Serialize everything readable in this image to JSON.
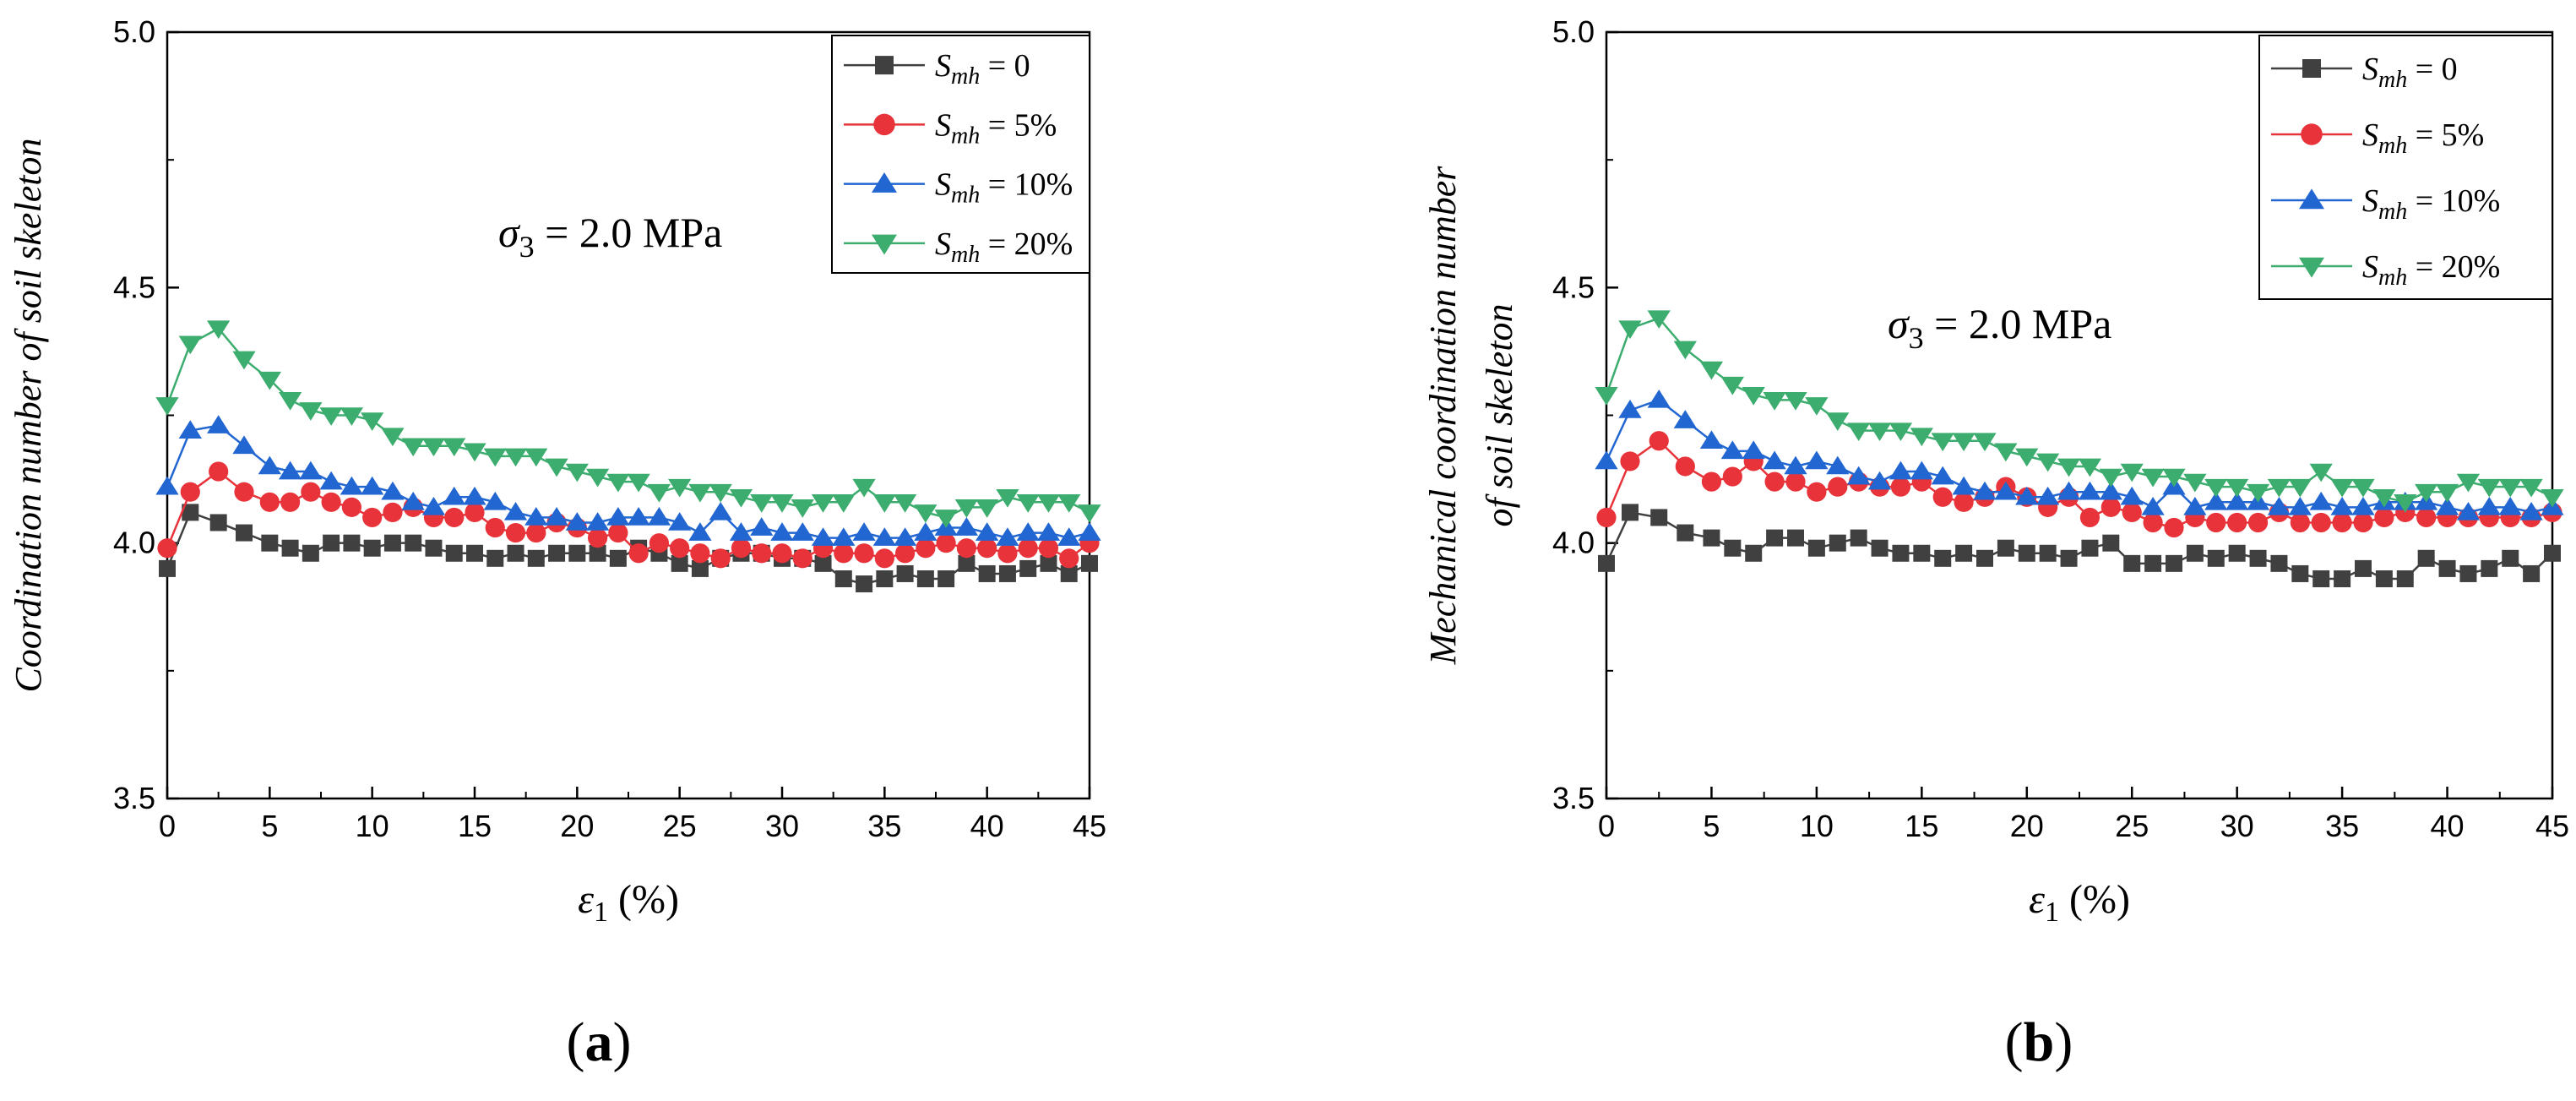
{
  "figure": {
    "panels": [
      {
        "label_open": "(",
        "label_letter": "a",
        "label_close": ")"
      },
      {
        "label_open": "(",
        "label_letter": "b",
        "label_close": ")"
      }
    ]
  },
  "chart_data": [
    {
      "type": "line",
      "panel": "a",
      "xlabel": "ε1 (%)",
      "ylabel": "Coordination number of soil skeleton",
      "xlim": [
        0,
        45
      ],
      "ylim": [
        3.5,
        5.0
      ],
      "xticks": [
        0,
        5,
        10,
        15,
        20,
        25,
        30,
        35,
        40,
        45
      ],
      "yticks": [
        3.5,
        4.0,
        4.5,
        5.0
      ],
      "grid": false,
      "legend_position": "top-right",
      "annotation": "σ3 = 2.0 MPa",
      "x": [
        0,
        1.125,
        2.5,
        3.75,
        5.0,
        6.0,
        7.0,
        8.0,
        9.0,
        10.0,
        11.0,
        12.0,
        13.0,
        14.0,
        15.0,
        16.0,
        17.0,
        18.0,
        19.0,
        20.0,
        21.0,
        22.0,
        23.0,
        24.0,
        25.0,
        26.0,
        27.0,
        28.0,
        29.0,
        30.0,
        31.0,
        32.0,
        33.0,
        34.0,
        35.0,
        36.0,
        37.0,
        38.0,
        39.0,
        40.0,
        41.0,
        42.0,
        43.0,
        44.0,
        45.0
      ],
      "series": [
        {
          "name": "Smh = 0",
          "color": "#404040",
          "marker": "square",
          "values": [
            3.95,
            4.06,
            4.04,
            4.02,
            4.0,
            3.99,
            3.98,
            4.0,
            4.0,
            3.99,
            4.0,
            4.0,
            3.99,
            3.98,
            3.98,
            3.97,
            3.98,
            3.97,
            3.98,
            3.98,
            3.98,
            3.97,
            3.99,
            3.98,
            3.96,
            3.95,
            3.97,
            3.98,
            3.98,
            3.97,
            3.97,
            3.96,
            3.93,
            3.92,
            3.93,
            3.94,
            3.93,
            3.93,
            3.96,
            3.94,
            3.94,
            3.95,
            3.96,
            3.94,
            3.96
          ]
        },
        {
          "name": "Smh = 5%",
          "color": "#e8333a",
          "marker": "circle",
          "values": [
            3.99,
            4.1,
            4.14,
            4.1,
            4.08,
            4.08,
            4.1,
            4.08,
            4.07,
            4.05,
            4.06,
            4.07,
            4.05,
            4.05,
            4.06,
            4.03,
            4.02,
            4.02,
            4.04,
            4.03,
            4.01,
            4.02,
            3.98,
            4.0,
            3.99,
            3.98,
            3.97,
            3.99,
            3.98,
            3.98,
            3.97,
            3.99,
            3.98,
            3.98,
            3.97,
            3.98,
            3.99,
            4.0,
            3.99,
            3.99,
            3.98,
            3.99,
            3.99,
            3.97,
            4.0
          ]
        },
        {
          "name": "Smh = 10%",
          "color": "#2166d1",
          "marker": "triangle-up",
          "values": [
            4.11,
            4.22,
            4.23,
            4.19,
            4.15,
            4.14,
            4.14,
            4.12,
            4.11,
            4.11,
            4.1,
            4.08,
            4.07,
            4.09,
            4.09,
            4.08,
            4.06,
            4.05,
            4.05,
            4.04,
            4.04,
            4.05,
            4.05,
            4.05,
            4.04,
            4.02,
            4.06,
            4.02,
            4.03,
            4.02,
            4.02,
            4.01,
            4.01,
            4.02,
            4.01,
            4.01,
            4.02,
            4.03,
            4.03,
            4.02,
            4.01,
            4.02,
            4.02,
            4.01,
            4.02
          ]
        },
        {
          "name": "Smh = 20%",
          "color": "#3cad6e",
          "marker": "triangle-down",
          "values": [
            4.27,
            4.39,
            4.42,
            4.36,
            4.32,
            4.28,
            4.26,
            4.25,
            4.25,
            4.24,
            4.21,
            4.19,
            4.19,
            4.19,
            4.18,
            4.17,
            4.17,
            4.17,
            4.15,
            4.14,
            4.13,
            4.12,
            4.12,
            4.1,
            4.11,
            4.1,
            4.1,
            4.09,
            4.08,
            4.08,
            4.07,
            4.08,
            4.08,
            4.11,
            4.08,
            4.08,
            4.06,
            4.05,
            4.07,
            4.07,
            4.09,
            4.08,
            4.08,
            4.08,
            4.06
          ]
        }
      ]
    },
    {
      "type": "line",
      "panel": "b",
      "xlabel": "ε1 (%)",
      "ylabel": "Mechanical coordination number of soil skeleton",
      "ylabel_lines": [
        "Mechanical coordination number",
        "of soil skeleton"
      ],
      "xlim": [
        0,
        45
      ],
      "ylim": [
        3.5,
        5.0
      ],
      "xticks": [
        0,
        5,
        10,
        15,
        20,
        25,
        30,
        35,
        40,
        45
      ],
      "yticks": [
        3.5,
        4.0,
        4.5,
        5.0
      ],
      "grid": false,
      "legend_position": "top-right",
      "annotation": "σ3 = 2.0 MPa",
      "x": [
        0,
        1.125,
        2.5,
        3.75,
        5.0,
        6.0,
        7.0,
        8.0,
        9.0,
        10.0,
        11.0,
        12.0,
        13.0,
        14.0,
        15.0,
        16.0,
        17.0,
        18.0,
        19.0,
        20.0,
        21.0,
        22.0,
        23.0,
        24.0,
        25.0,
        26.0,
        27.0,
        28.0,
        29.0,
        30.0,
        31.0,
        32.0,
        33.0,
        34.0,
        35.0,
        36.0,
        37.0,
        38.0,
        39.0,
        40.0,
        41.0,
        42.0,
        43.0,
        44.0,
        45.0
      ],
      "series": [
        {
          "name": "Smh = 0",
          "color": "#404040",
          "marker": "square",
          "values": [
            3.96,
            4.06,
            4.05,
            4.02,
            4.01,
            3.99,
            3.98,
            4.01,
            4.01,
            3.99,
            4.0,
            4.01,
            3.99,
            3.98,
            3.98,
            3.97,
            3.98,
            3.97,
            3.99,
            3.98,
            3.98,
            3.97,
            3.99,
            4.0,
            3.96,
            3.96,
            3.96,
            3.98,
            3.97,
            3.98,
            3.97,
            3.96,
            3.94,
            3.93,
            3.93,
            3.95,
            3.93,
            3.93,
            3.97,
            3.95,
            3.94,
            3.95,
            3.97,
            3.94,
            3.98
          ]
        },
        {
          "name": "Smh = 5%",
          "color": "#e8333a",
          "marker": "circle",
          "values": [
            4.05,
            4.16,
            4.2,
            4.15,
            4.12,
            4.13,
            4.16,
            4.12,
            4.12,
            4.1,
            4.11,
            4.12,
            4.11,
            4.11,
            4.12,
            4.09,
            4.08,
            4.09,
            4.11,
            4.09,
            4.07,
            4.09,
            4.05,
            4.07,
            4.06,
            4.04,
            4.03,
            4.05,
            4.04,
            4.04,
            4.04,
            4.06,
            4.04,
            4.04,
            4.04,
            4.04,
            4.05,
            4.06,
            4.05,
            4.05,
            4.05,
            4.05,
            4.05,
            4.05,
            4.06
          ]
        },
        {
          "name": "Smh = 10%",
          "color": "#2166d1",
          "marker": "triangle-up",
          "values": [
            4.16,
            4.26,
            4.28,
            4.24,
            4.2,
            4.18,
            4.18,
            4.16,
            4.15,
            4.16,
            4.15,
            4.13,
            4.12,
            4.14,
            4.14,
            4.13,
            4.11,
            4.1,
            4.1,
            4.09,
            4.09,
            4.1,
            4.1,
            4.1,
            4.09,
            4.07,
            4.11,
            4.07,
            4.08,
            4.08,
            4.08,
            4.07,
            4.07,
            4.08,
            4.07,
            4.07,
            4.08,
            4.08,
            4.08,
            4.07,
            4.06,
            4.07,
            4.07,
            4.06,
            4.07
          ]
        },
        {
          "name": "Smh = 20%",
          "color": "#3cad6e",
          "marker": "triangle-down",
          "values": [
            4.29,
            4.42,
            4.44,
            4.38,
            4.34,
            4.31,
            4.29,
            4.28,
            4.28,
            4.27,
            4.24,
            4.22,
            4.22,
            4.22,
            4.21,
            4.2,
            4.2,
            4.2,
            4.18,
            4.17,
            4.16,
            4.15,
            4.15,
            4.13,
            4.14,
            4.13,
            4.13,
            4.12,
            4.11,
            4.11,
            4.1,
            4.11,
            4.11,
            4.14,
            4.11,
            4.11,
            4.09,
            4.08,
            4.1,
            4.1,
            4.12,
            4.11,
            4.11,
            4.11,
            4.09
          ]
        }
      ]
    }
  ]
}
